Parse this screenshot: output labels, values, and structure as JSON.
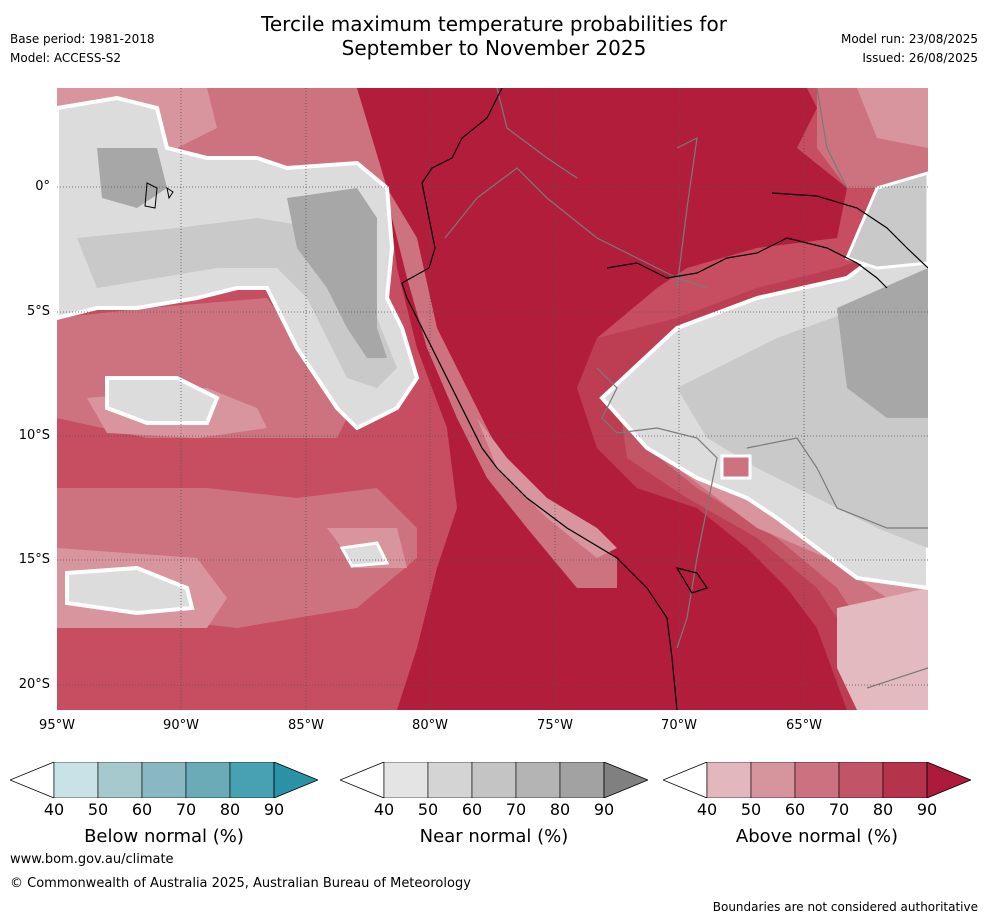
{
  "header": {
    "title_line1": "Tercile maximum temperature probabilities for",
    "title_line2": "September to November 2025",
    "base_period": "Base period: 1981-2018",
    "model": "Model: ACCESS-S2",
    "model_run": "Model run: 23/08/2025",
    "issued": "Issued: 26/08/2025"
  },
  "axes": {
    "lat_labels": [
      "0°",
      "5°S",
      "10°S",
      "15°S",
      "20°S"
    ],
    "lon_labels": [
      "95°W",
      "90°W",
      "85°W",
      "80°W",
      "75°W",
      "70°W",
      "65°W"
    ]
  },
  "colorbars": [
    {
      "name": "below",
      "title": "Below normal (%)",
      "ticks": [
        "40",
        "50",
        "60",
        "70",
        "80",
        "90"
      ],
      "colors": [
        "#ffffff",
        "#c8e2e7",
        "#a6c9ce",
        "#89b7c2",
        "#6aabb7",
        "#47a1b3",
        "#2b91a6"
      ]
    },
    {
      "name": "near",
      "title": "Near normal (%)",
      "ticks": [
        "40",
        "50",
        "60",
        "70",
        "80",
        "90"
      ],
      "colors": [
        "#ffffff",
        "#e4e4e4",
        "#d4d4d4",
        "#c4c4c4",
        "#b4b4b4",
        "#a2a2a2",
        "#808080"
      ]
    },
    {
      "name": "above",
      "title": "Above normal (%)",
      "ticks": [
        "40",
        "50",
        "60",
        "70",
        "80",
        "90"
      ],
      "colors": [
        "#ffffff",
        "#e2b7bd",
        "#d6949d",
        "#cb717f",
        "#c15466",
        "#b6334c",
        "#ad1a3b"
      ]
    }
  ],
  "footer": {
    "website": "www.bom.gov.au/climate",
    "copyright": "© Commonwealth of Australia 2025, Australian Bureau of Meteorology",
    "disclaimer": "Boundaries are not considered authoritative"
  },
  "map_colors": {
    "ocean_base": "#c64e60",
    "above_90": "#b21d3b",
    "above_80": "#bd3d53",
    "above_70": "#c45565",
    "above_60": "#cd7380",
    "above_50": "#d8959e",
    "above_40": "#e3bac0",
    "near_50": "#dcdcdc",
    "near_60": "#c9c9c9",
    "near_70": "#a7a7a7",
    "grid": "#555555",
    "coast": "#000000",
    "border": "#7a7a7a"
  }
}
